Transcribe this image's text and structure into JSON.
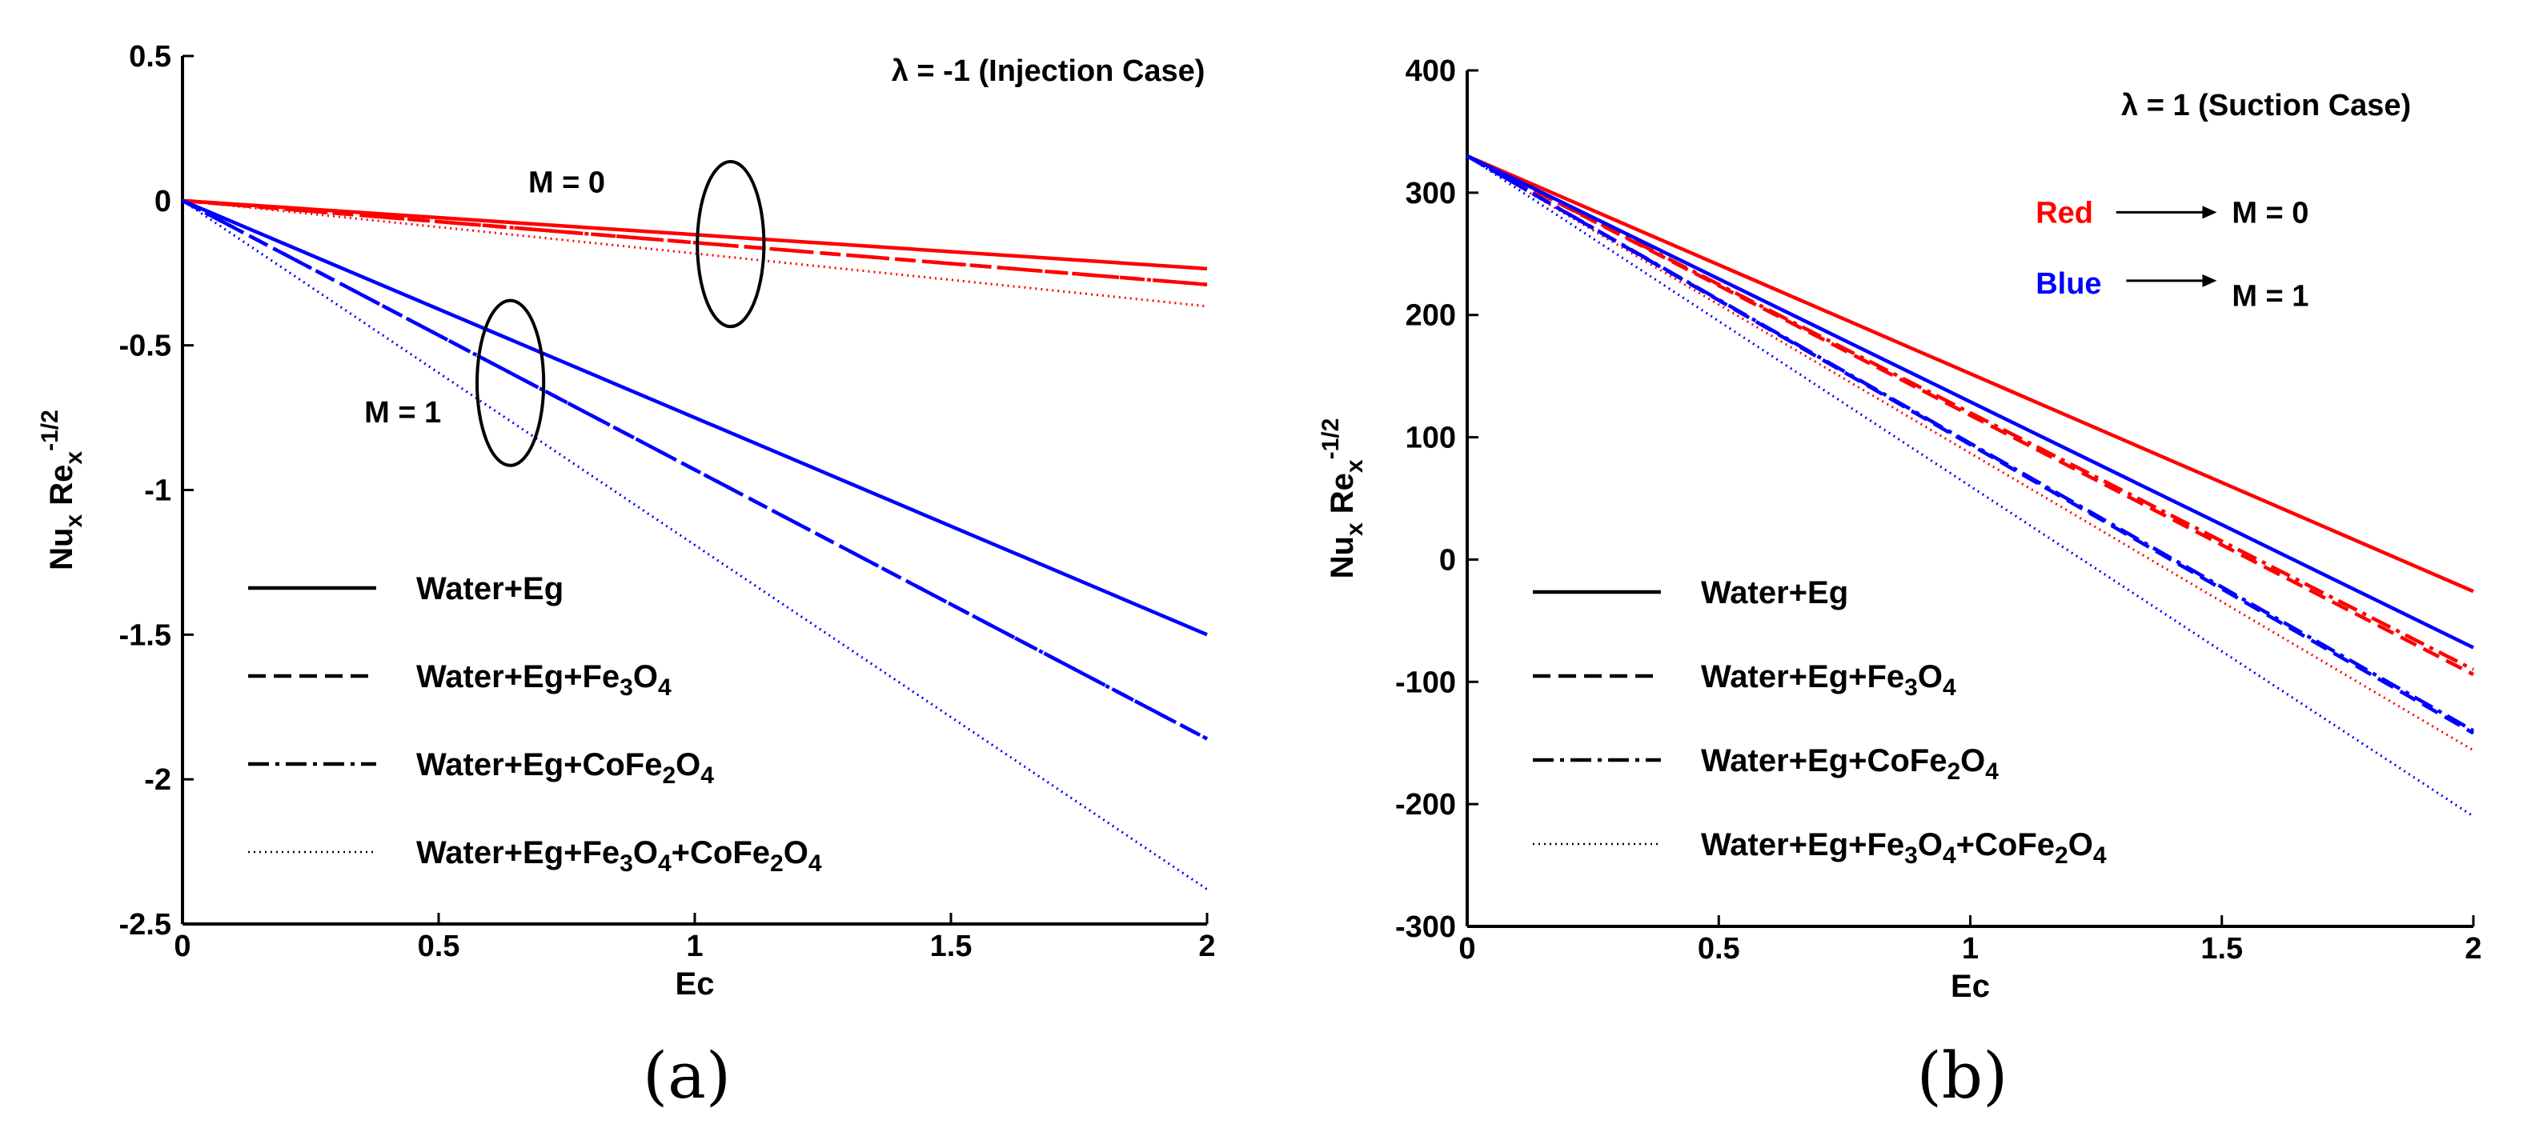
{
  "chart_data": [
    {
      "type": "line",
      "caption": "(a)",
      "title": "",
      "xlabel": "Ec",
      "ylabel_parts": [
        "Nu",
        "x",
        " Re",
        "x",
        "-1/2"
      ],
      "xlim": [
        0,
        2
      ],
      "ylim": [
        -2.5,
        0.5
      ],
      "xticks": [
        0,
        0.5,
        1,
        1.5,
        2
      ],
      "xtick_labels": [
        "0",
        "0.5",
        "1",
        "1.5",
        "2"
      ],
      "yticks": [
        -2.5,
        -2,
        -1.5,
        -1,
        -0.5,
        0,
        0.5
      ],
      "ytick_labels": [
        "-2.5",
        "-2",
        "-1.5",
        "-1",
        "-0.5",
        "0",
        "0.5"
      ],
      "annotations": [
        {
          "text": "λ  = -1 (Injection Case)",
          "x": 1.69,
          "y": 0.45,
          "anchor": "middle"
        },
        {
          "text": "M = 0",
          "x": 0.75,
          "y": 0.065,
          "anchor": "middle"
        },
        {
          "text": "M = 1",
          "x": 0.43,
          "y": -0.73,
          "anchor": "middle"
        }
      ],
      "ellipses": [
        {
          "cx": 1.07,
          "cy": -0.15,
          "rx": 0.065,
          "ry": 0.285
        },
        {
          "cx": 0.64,
          "cy": -0.63,
          "rx": 0.065,
          "ry": 0.285
        }
      ],
      "series": [
        {
          "name": "M=0 Water+Eg",
          "color": "#ff0000",
          "style": "solid",
          "x": [
            0,
            2
          ],
          "y": [
            0,
            -0.235
          ]
        },
        {
          "name": "M=0 Water+Eg+Fe3O4",
          "color": "#ff0000",
          "style": "dashed",
          "x": [
            0,
            2
          ],
          "y": [
            0,
            -0.29
          ]
        },
        {
          "name": "M=0 Water+Eg+CoFe2O4",
          "color": "#ff0000",
          "style": "dashdot",
          "x": [
            0,
            2
          ],
          "y": [
            0,
            -0.29
          ]
        },
        {
          "name": "M=0 Water+Eg+Fe3O4+CoFe2O4",
          "color": "#ff0000",
          "style": "dotted",
          "x": [
            0,
            2
          ],
          "y": [
            0,
            -0.365
          ]
        },
        {
          "name": "M=1 Water+Eg",
          "color": "#0000ff",
          "style": "solid",
          "x": [
            0,
            2
          ],
          "y": [
            0,
            -1.5
          ]
        },
        {
          "name": "M=1 Water+Eg+Fe3O4",
          "color": "#0000ff",
          "style": "dashed",
          "x": [
            0,
            2
          ],
          "y": [
            0,
            -1.86
          ]
        },
        {
          "name": "M=1 Water+Eg+CoFe2O4",
          "color": "#0000ff",
          "style": "dashdot",
          "x": [
            0,
            2
          ],
          "y": [
            0,
            -1.86
          ]
        },
        {
          "name": "M=1 Water+Eg+Fe3O4+CoFe2O4",
          "color": "#0000ff",
          "style": "dotted",
          "x": [
            0,
            2
          ],
          "y": [
            0,
            -2.38
          ]
        }
      ],
      "legend": {
        "placement": "bottom-left",
        "entries": [
          {
            "label": "Water+Eg",
            "style": "solid"
          },
          {
            "label": "Water+Eg+Fe3O4",
            "style": "dashed"
          },
          {
            "label": "Water+Eg+CoFe2O4",
            "style": "dashdot"
          },
          {
            "label": "Water+Eg+Fe3O4+CoFe2O4",
            "style": "dotted"
          }
        ]
      }
    },
    {
      "type": "line",
      "caption": "(b)",
      "title": "",
      "xlabel": "Ec",
      "ylabel_parts": [
        "Nu",
        "x",
        " Re",
        "x",
        "-1/2"
      ],
      "xlim": [
        0,
        2
      ],
      "ylim": [
        -300,
        400
      ],
      "xticks": [
        0,
        0.5,
        1,
        1.5,
        2
      ],
      "xtick_labels": [
        "0",
        "0.5",
        "1",
        "1.5",
        "2"
      ],
      "yticks": [
        -300,
        -200,
        -100,
        0,
        100,
        200,
        300,
        400
      ],
      "ytick_labels": [
        "-300",
        "-200",
        "-100",
        "0",
        "100",
        "200",
        "300",
        "400"
      ],
      "annotations": [
        {
          "text": "λ  = 1 (Suction Case)",
          "x": 1.3,
          "y": 372,
          "anchor": "start"
        },
        {
          "text": "Red",
          "x": 1.13,
          "y": 284,
          "anchor": "start",
          "color": "#ff0000"
        },
        {
          "text": "M  = 0",
          "x": 1.52,
          "y": 284,
          "anchor": "start"
        },
        {
          "text": "Blue",
          "x": 1.13,
          "y": 226,
          "anchor": "start",
          "color": "#0000ff"
        },
        {
          "text": "M  = 1",
          "x": 1.52,
          "y": 216,
          "anchor": "start"
        }
      ],
      "arrows": [
        {
          "x1": 1.29,
          "y1": 284,
          "x2": 1.49,
          "y2": 284
        },
        {
          "x1": 1.31,
          "y1": 228,
          "x2": 1.49,
          "y2": 228
        }
      ],
      "series": [
        {
          "name": "M=0 Water+Eg",
          "color": "#ff0000",
          "style": "solid",
          "x": [
            0,
            2
          ],
          "y": [
            330,
            -26
          ]
        },
        {
          "name": "M=0 Water+Eg+Fe3O4",
          "color": "#ff0000",
          "style": "dashed",
          "x": [
            0,
            2
          ],
          "y": [
            330,
            -94
          ]
        },
        {
          "name": "M=0 Water+Eg+CoFe2O4",
          "color": "#ff0000",
          "style": "dashdot",
          "x": [
            0,
            2
          ],
          "y": [
            330,
            -90
          ]
        },
        {
          "name": "M=0 Water+Eg+Fe3O4+CoFe2O4",
          "color": "#ff0000",
          "style": "dotted",
          "x": [
            0,
            2
          ],
          "y": [
            330,
            -156
          ]
        },
        {
          "name": "M=1 Water+Eg",
          "color": "#0000ff",
          "style": "solid",
          "x": [
            0,
            2
          ],
          "y": [
            330,
            -72
          ]
        },
        {
          "name": "M=1 Water+Eg+Fe3O4",
          "color": "#0000ff",
          "style": "dashed",
          "x": [
            0,
            2
          ],
          "y": [
            330,
            -142
          ]
        },
        {
          "name": "M=1 Water+Eg+CoFe2O4",
          "color": "#0000ff",
          "style": "dashdot",
          "x": [
            0,
            2
          ],
          "y": [
            330,
            -140
          ]
        },
        {
          "name": "M=1 Water+Eg+Fe3O4+CoFe2O4",
          "color": "#0000ff",
          "style": "dotted",
          "x": [
            0,
            2
          ],
          "y": [
            330,
            -210
          ]
        }
      ],
      "legend": {
        "placement": "bottom-left",
        "entries": [
          {
            "label": "Water+Eg",
            "style": "solid"
          },
          {
            "label": "Water+Eg+Fe3O4",
            "style": "dashed"
          },
          {
            "label": "Water+Eg+CoFe2O4",
            "style": "dashdot"
          },
          {
            "label": "Water+Eg+Fe3O4+CoFe2O4",
            "style": "dotted"
          }
        ]
      }
    }
  ]
}
